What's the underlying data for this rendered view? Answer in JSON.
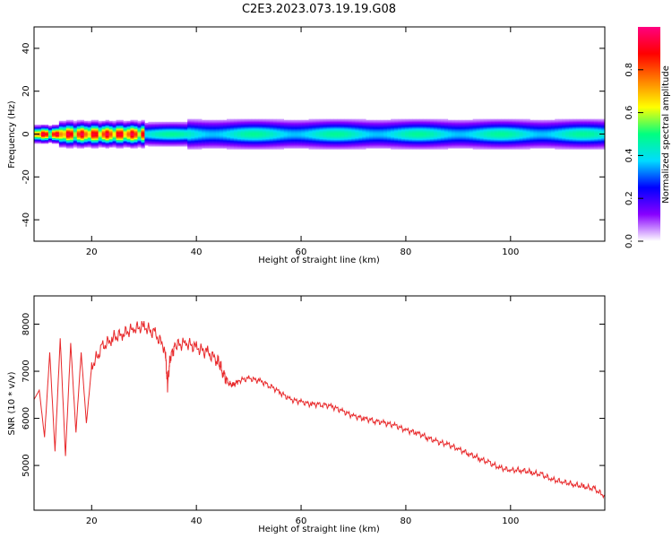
{
  "title": "C2E3.2023.073.19.19.G08",
  "chart_data": [
    {
      "type": "heatmap",
      "xlabel": "Height of straight line (km)",
      "ylabel": "Frequency (Hz)",
      "xlim": [
        9,
        118
      ],
      "ylim": [
        -50,
        50
      ],
      "xticks": [
        20,
        40,
        60,
        80,
        100
      ],
      "yticks": [
        40,
        20,
        0,
        -20,
        -40
      ],
      "ytick_labels": [
        "40",
        "20",
        "0",
        "-20",
        "-40"
      ],
      "colorbar": {
        "label": "Normalized spectral amplitude",
        "ticks": [
          0.0,
          0.2,
          0.4,
          0.6,
          0.8
        ],
        "tick_labels": [
          "0.0",
          "0.2",
          "0.4",
          "0.6",
          "0.8"
        ],
        "range": [
          0,
          1
        ],
        "colormap": [
          "#ffffff",
          "#8800ff",
          "#0000ff",
          "#00dcff",
          "#00ff80",
          "#ffff00",
          "#ff8000",
          "#ff0000",
          "#ff0080"
        ]
      },
      "band_center_hz": 0,
      "band_halfwidth_hz": 4
    },
    {
      "type": "line",
      "xlabel": "Height of straight line (km)",
      "ylabel": "SNR (10 * v/v)",
      "xlim": [
        9,
        118
      ],
      "ylim": [
        4050,
        8600
      ],
      "xticks": [
        20,
        40,
        60,
        80,
        100
      ],
      "yticks": [
        5000,
        6000,
        7000,
        8000
      ],
      "line_color": "#e8282a",
      "series": [
        {
          "x": [
            9,
            10,
            11,
            12,
            13,
            14,
            15,
            16,
            17,
            18,
            19,
            20,
            22,
            24,
            26,
            28,
            30,
            32,
            34,
            34.5,
            35,
            36,
            38,
            40,
            42,
            44,
            45,
            46,
            47,
            48,
            50,
            52,
            54,
            56,
            58,
            60,
            62,
            64,
            66,
            68,
            70,
            72,
            74,
            76,
            78,
            80,
            82,
            84,
            86,
            88,
            90,
            92,
            94,
            96,
            98,
            100,
            102,
            104,
            106,
            108,
            110,
            112,
            114,
            116,
            118
          ],
          "y": [
            6400,
            6600,
            5600,
            7400,
            5300,
            7700,
            5200,
            7600,
            5700,
            7400,
            5900,
            7100,
            7500,
            7700,
            7800,
            7900,
            7950,
            7800,
            7500,
            6700,
            7300,
            7550,
            7600,
            7500,
            7400,
            7250,
            7000,
            6750,
            6700,
            6800,
            6850,
            6800,
            6700,
            6550,
            6400,
            6350,
            6300,
            6300,
            6250,
            6150,
            6050,
            6000,
            5950,
            5900,
            5850,
            5750,
            5700,
            5600,
            5500,
            5450,
            5350,
            5250,
            5150,
            5050,
            4950,
            4900,
            4900,
            4850,
            4800,
            4700,
            4650,
            4600,
            4550,
            4500,
            4350
          ]
        }
      ]
    }
  ]
}
